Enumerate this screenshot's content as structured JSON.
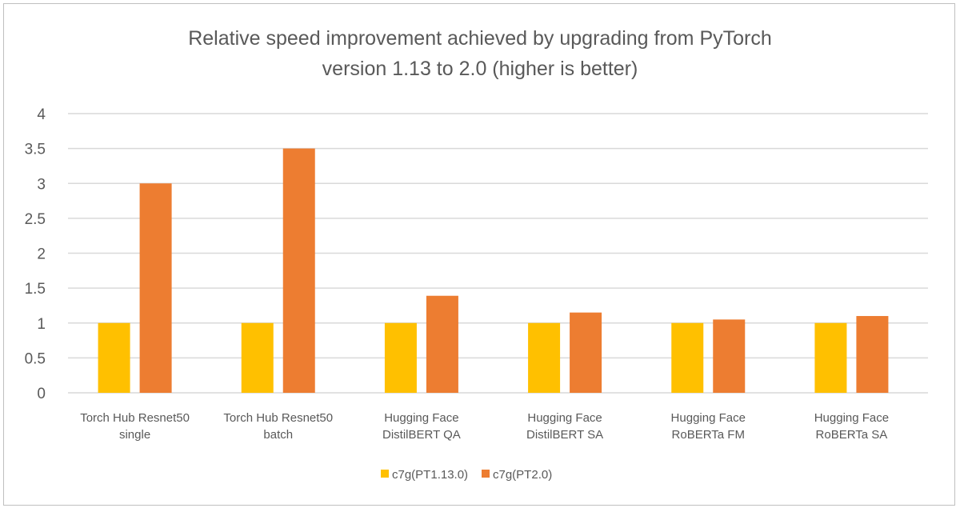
{
  "chart_data": {
    "type": "bar",
    "title_lines": [
      "Relative speed improvement achieved by upgrading from PyTorch",
      "version 1.13 to 2.0 (higher is better)"
    ],
    "categories": [
      [
        "Torch Hub Resnet50",
        "single"
      ],
      [
        "Torch Hub Resnet50",
        "batch"
      ],
      [
        "Hugging Face",
        "DistilBERT QA"
      ],
      [
        "Hugging Face",
        "DistilBERT SA"
      ],
      [
        "Hugging Face",
        "RoBERTa FM"
      ],
      [
        "Hugging Face",
        "RoBERTa SA"
      ]
    ],
    "series": [
      {
        "name": "c7g(PT1.13.0)",
        "color": "#FFC000",
        "values": [
          1,
          1,
          1,
          1,
          1,
          1
        ]
      },
      {
        "name": "c7g(PT2.0)",
        "color": "#ED7D31",
        "values": [
          3.0,
          3.5,
          1.39,
          1.15,
          1.05,
          1.1
        ]
      }
    ],
    "yticks": [
      "0",
      "0.5",
      "1",
      "1.5",
      "2",
      "2.5",
      "3",
      "3.5",
      "4"
    ],
    "ylim": [
      0,
      4
    ],
    "xlabel": "",
    "ylabel": "",
    "grid": true,
    "legend": "bottom"
  }
}
